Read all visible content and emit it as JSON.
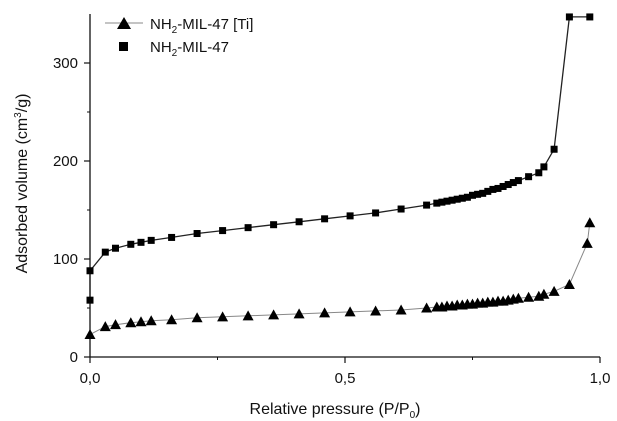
{
  "chart_data": {
    "type": "line",
    "xlabel": {
      "main": "Relative pressure (P/P",
      "sub": "0",
      "tail": ")"
    },
    "ylabel": {
      "main": "Adsorbed volume (cm",
      "sup": "3",
      "tail": "/g)"
    },
    "xlim": [
      0.0,
      1.0
    ],
    "ylim": [
      0,
      350
    ],
    "x_ticks": [
      0.0,
      0.5,
      1.0
    ],
    "x_tick_labels": [
      "0,0",
      "0,5",
      "1,0"
    ],
    "y_ticks": [
      0,
      100,
      200,
      300
    ],
    "y_tick_labels": [
      "0",
      "100",
      "200",
      "300"
    ],
    "grid": false,
    "legend_position": "top-left",
    "series": [
      {
        "name": {
          "main": "NH",
          "sub": "2",
          "tail": "-MIL-47 [Ti]"
        },
        "marker": "triangle",
        "line_color": "#888888",
        "x": [
          0.0,
          0.03,
          0.05,
          0.08,
          0.1,
          0.12,
          0.16,
          0.21,
          0.26,
          0.31,
          0.36,
          0.41,
          0.46,
          0.51,
          0.56,
          0.61,
          0.66,
          0.68,
          0.69,
          0.7,
          0.71,
          0.72,
          0.73,
          0.74,
          0.75,
          0.76,
          0.77,
          0.78,
          0.79,
          0.8,
          0.81,
          0.82,
          0.83,
          0.84,
          0.86,
          0.88,
          0.89,
          0.91,
          0.94,
          0.975,
          0.98
        ],
        "y": [
          23,
          31,
          33,
          35,
          36,
          37,
          38,
          40,
          41,
          42,
          43,
          44,
          45,
          46,
          47,
          48,
          50,
          51,
          51,
          52,
          52,
          53,
          53,
          54,
          54,
          55,
          55,
          56,
          56,
          57,
          57,
          58,
          59,
          60,
          61,
          62,
          64,
          67,
          74,
          116,
          137
        ]
      },
      {
        "name": {
          "main": "NH",
          "sub": "2",
          "tail": "-MIL-47"
        },
        "marker": "square",
        "line_color": "#222222",
        "x": [
          0.0,
          0.0,
          0.03,
          0.05,
          0.08,
          0.1,
          0.12,
          0.16,
          0.21,
          0.26,
          0.31,
          0.36,
          0.41,
          0.46,
          0.51,
          0.56,
          0.61,
          0.66,
          0.68,
          0.69,
          0.7,
          0.71,
          0.72,
          0.73,
          0.74,
          0.75,
          0.76,
          0.77,
          0.78,
          0.79,
          0.8,
          0.81,
          0.82,
          0.83,
          0.84,
          0.86,
          0.88,
          0.89,
          0.91,
          0.94,
          0.98
        ],
        "y": [
          58,
          88,
          107,
          111,
          115,
          117,
          119,
          122,
          126,
          129,
          132,
          135,
          138,
          141,
          144,
          147,
          151,
          155,
          157,
          158,
          159,
          160,
          161,
          162,
          163,
          165,
          166,
          167,
          169,
          171,
          172,
          174,
          176,
          178,
          180,
          184,
          188,
          194,
          212,
          347,
          347
        ]
      }
    ]
  }
}
